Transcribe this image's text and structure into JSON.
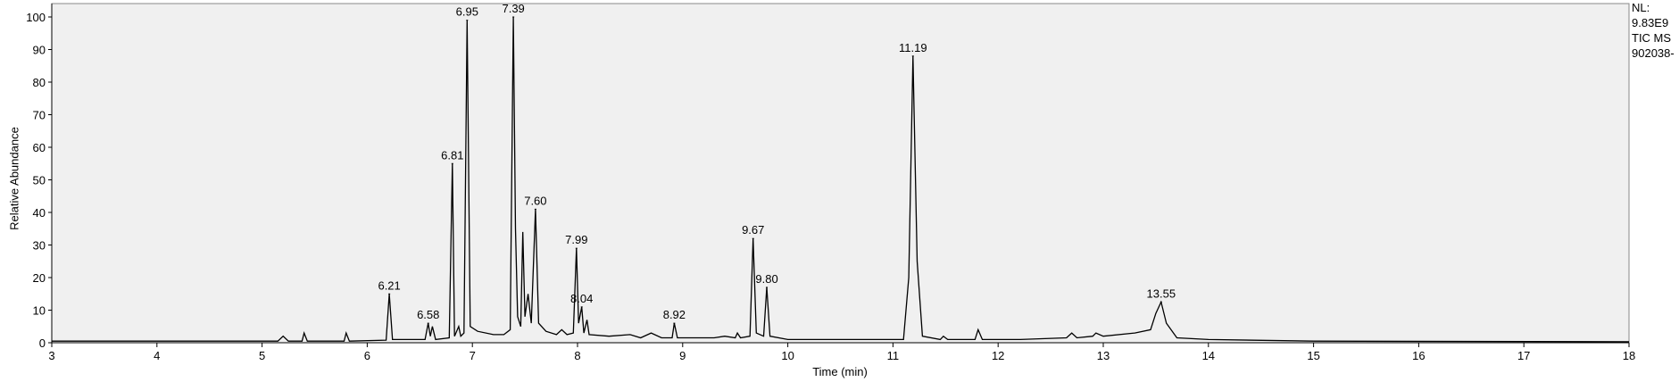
{
  "chart_data": {
    "type": "line",
    "x_label": "Time (min)",
    "y_label": "Relative Abundance",
    "info": [
      "NL:",
      "9.83E9",
      "TIC  MS",
      "902038-"
    ],
    "color": "#000000",
    "x": [
      3,
      5.15,
      5.2,
      5.25,
      5.38,
      5.4,
      5.43,
      5.78,
      5.8,
      5.83,
      6.18,
      6.21,
      6.24,
      6.55,
      6.58,
      6.6,
      6.62,
      6.65,
      6.78,
      6.81,
      6.83,
      6.87,
      6.89,
      6.92,
      6.95,
      6.98,
      7.05,
      7.2,
      7.3,
      7.36,
      7.39,
      7.41,
      7.43,
      7.46,
      7.48,
      7.5,
      7.53,
      7.56,
      7.6,
      7.63,
      7.7,
      7.8,
      7.85,
      7.9,
      7.96,
      7.99,
      8.01,
      8.04,
      8.06,
      8.09,
      8.11,
      8.3,
      8.5,
      8.6,
      8.7,
      8.8,
      8.9,
      8.92,
      8.95,
      9.3,
      9.4,
      9.5,
      9.52,
      9.55,
      9.64,
      9.67,
      9.7,
      9.77,
      9.8,
      9.83,
      10,
      10.2,
      11.1,
      11.15,
      11.19,
      11.23,
      11.28,
      11.45,
      11.48,
      11.52,
      11.78,
      11.81,
      11.85,
      12.2,
      12.65,
      12.7,
      12.75,
      12.9,
      12.93,
      13,
      13.3,
      13.45,
      13.5,
      13.55,
      13.6,
      13.7,
      14,
      15,
      18
    ],
    "y": [
      0.5,
      0.5,
      2,
      0.5,
      0.5,
      3,
      0.5,
      0.5,
      3,
      0.5,
      0.8,
      15,
      1,
      1,
      6,
      2,
      5,
      1,
      1.5,
      55,
      2,
      5,
      2,
      3,
      99,
      5,
      3.5,
      2.5,
      2.5,
      4,
      100,
      35,
      8,
      5,
      34,
      8,
      15,
      6,
      41,
      6,
      3.5,
      2.5,
      4,
      2.5,
      3,
      29,
      6,
      11,
      3,
      7,
      2.5,
      2,
      2.5,
      1.5,
      3,
      1.5,
      1.5,
      6,
      1.5,
      1.5,
      2,
      1.5,
      3,
      1.5,
      2,
      32,
      3,
      2,
      17,
      2,
      1,
      1,
      1,
      20,
      88,
      25,
      2,
      1,
      2,
      1,
      1,
      4,
      1,
      1,
      1.5,
      3,
      1.5,
      2,
      3,
      2,
      3,
      4,
      9,
      12.5,
      6,
      1.5,
      1,
      0.5,
      0.3
    ],
    "annotations": [
      {
        "x": 6.21,
        "y": 15,
        "label": "6.21"
      },
      {
        "x": 6.58,
        "y": 6,
        "label": "6.58"
      },
      {
        "x": 6.81,
        "y": 55,
        "label": "6.81"
      },
      {
        "x": 6.95,
        "y": 99,
        "label": "6.95"
      },
      {
        "x": 7.39,
        "y": 100,
        "label": "7.39"
      },
      {
        "x": 7.6,
        "y": 41,
        "label": "7.60"
      },
      {
        "x": 7.99,
        "y": 29,
        "label": "7.99"
      },
      {
        "x": 8.04,
        "y": 11,
        "label": "8.04"
      },
      {
        "x": 8.92,
        "y": 6,
        "label": "8.92"
      },
      {
        "x": 9.67,
        "y": 32,
        "label": "9.67"
      },
      {
        "x": 9.8,
        "y": 17,
        "label": "9.80"
      },
      {
        "x": 11.19,
        "y": 88,
        "label": "11.19"
      },
      {
        "x": 13.55,
        "y": 12.5,
        "label": "13.55"
      }
    ],
    "xlim": [
      3,
      18
    ],
    "xticks": [
      3,
      4,
      5,
      6,
      7,
      8,
      9,
      10,
      11,
      12,
      13,
      14,
      15,
      16,
      17,
      18
    ],
    "ylim": [
      0,
      100
    ],
    "yticks": [
      0,
      10,
      20,
      30,
      40,
      50,
      60,
      70,
      80,
      90,
      100
    ]
  }
}
